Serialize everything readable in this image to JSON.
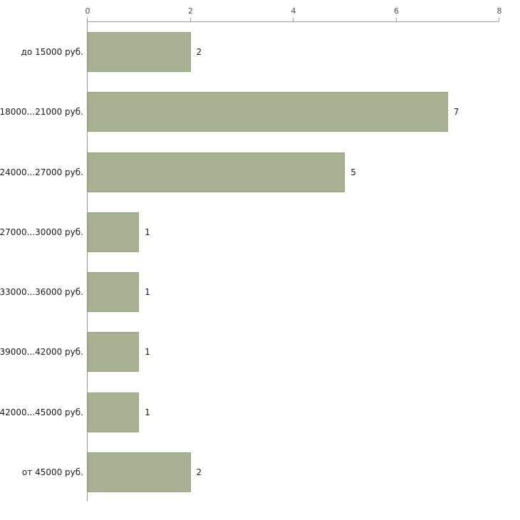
{
  "chart_data": {
    "type": "bar",
    "orientation": "horizontal",
    "title": "",
    "xlabel": "",
    "ylabel": "",
    "categories": [
      "до 15000 руб.",
      "18000...21000 руб.",
      "24000...27000 руб.",
      "27000...30000 руб.",
      "33000...36000 руб.",
      "39000...42000 руб.",
      "42000...45000 руб.",
      "от 45000 руб."
    ],
    "values": [
      2,
      7,
      5,
      1,
      1,
      1,
      1,
      2
    ],
    "value_labels": [
      "2",
      "7",
      "5",
      "1",
      "1",
      "1",
      "1",
      "2"
    ],
    "x_ticks": [
      "0",
      "2",
      "4",
      "6",
      "8"
    ],
    "xlim": [
      0,
      8
    ],
    "grid": false,
    "legend": false,
    "colors": {
      "bar_fill": "#a9b193",
      "bar_border": "#99a37e",
      "axis": "#9a9a9a",
      "tick_text": "#4d4d4d",
      "label_text": "#1a1a1a",
      "background": "#ffffff"
    }
  }
}
